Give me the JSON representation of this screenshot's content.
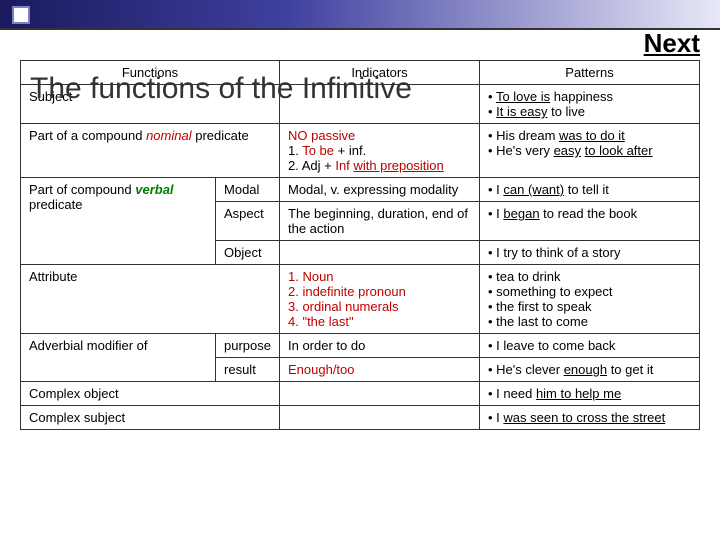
{
  "nav": {
    "next": "Next"
  },
  "title": "The functions of the Infinitive",
  "headers": {
    "functions": "Functions",
    "indicators": "Indicators",
    "patterns": "Patterns"
  },
  "rows": {
    "subject": {
      "label": "Subject",
      "patterns_html": "<ul class='bullets'><li><span class='u'>To love is</span> happiness</li><li> <span class='u'>It is easy</span> to live</li></ul>"
    },
    "nominal": {
      "label_html": "Part of a compound <span class='nominal'>nominal</span> predicate",
      "indicators_html": "<span class='red'>NO passive</span><br>1. <span class='red'>To be</span> + inf.<br>2. Adj + <span class='red'>Inf</span> <span class='red u'>with preposition</span>",
      "patterns_html": "<ul class='bullets'><li>His dream <span class='u'>was to do it</span></li><li>He's very <span class='u'>easy</span> <span class='u'>to look after</span></li></ul>"
    },
    "verbal": {
      "label_html": "Part of compound <span class='verbal'>verbal</span> predicate",
      "modal": {
        "sub": "Modal",
        "ind": "Modal, v. expressing modality",
        "pat_html": "<ul class='bullets'><li>I <span class='u'>can (want)</span> to tell it</li></ul>"
      },
      "aspect": {
        "sub": "Aspect",
        "ind": "The beginning, duration, end of the action",
        "pat_html": "<ul class='bullets'><li>I <span class='u'>began</span> to read the book</li></ul>"
      },
      "object": {
        "sub": "Object",
        "pat_html": "<ul class='bullets'><li>I try to think of a story</li></ul>"
      }
    },
    "attribute": {
      "label": "Attribute",
      "indicators_html": "<span class='red'>1. Noun<br>2. indefinite pronoun<br>3. ordinal numerals<br>4. \"the last\"</span>",
      "patterns_html": "<ul class='bullets'><li>tea to drink</li><li>something to expect</li><li>the first to speak</li><li>the last to come</li></ul>"
    },
    "adverbial": {
      "label": "Adverbial modifier of",
      "purpose": {
        "sub": "purpose",
        "ind": "In order to do",
        "pat_html": "<ul class='bullets'><li>I leave to come back</li></ul>"
      },
      "result": {
        "sub": "result",
        "ind_html": "<span class='red'>Enough/too</span>",
        "pat_html": "<ul class='bullets'><li>He's clever <span class='u'>enough</span> to get it</li></ul>"
      }
    },
    "complex_object": {
      "label": "Complex object",
      "pat_html": "<ul class='bullets'><li>I need <span class='u'>him to help me</span></li></ul>"
    },
    "complex_subject": {
      "label": "Complex subject",
      "pat_html": "<ul class='bullets'><li>I <span class='u'>was seen to cross the street</span></li></ul>"
    }
  },
  "colors": {
    "red": "#c00000",
    "green": "#008000",
    "border": "#333333",
    "gradient_start": "#1a1a5e",
    "gradient_end": "#e8e8f8"
  }
}
